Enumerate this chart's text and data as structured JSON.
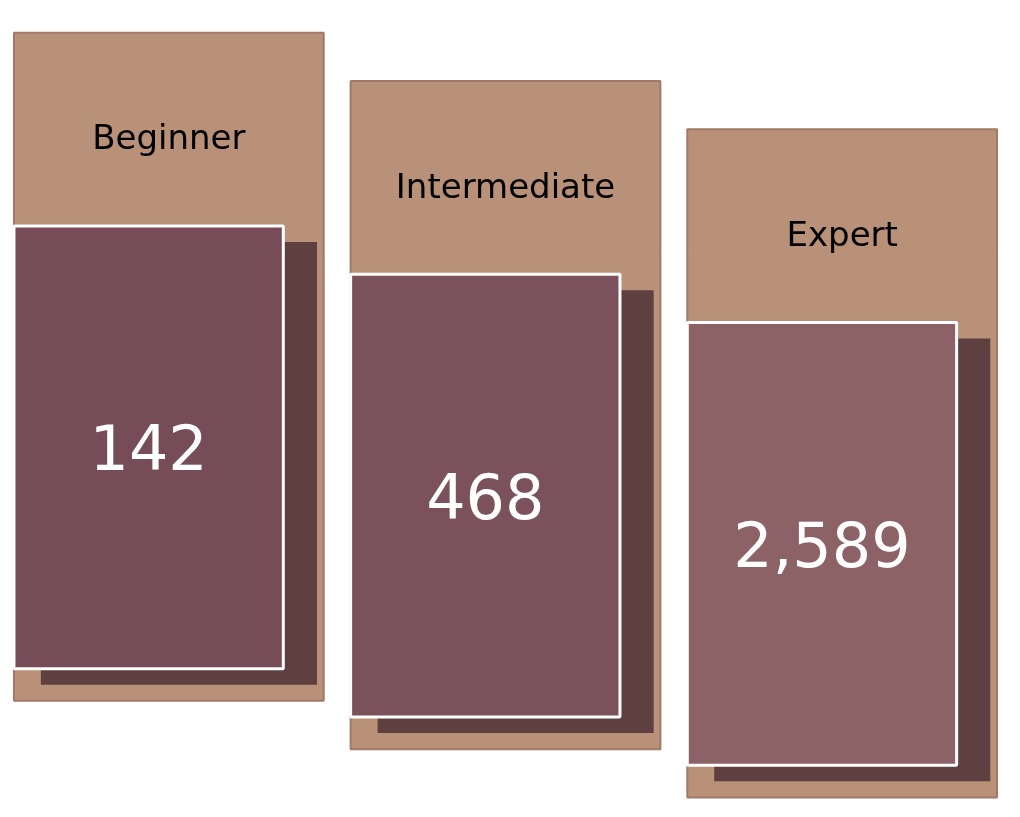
{
  "chart_data": {
    "type": "other",
    "categories": [
      "Beginner",
      "Intermediate",
      "Expert"
    ],
    "values": [
      142,
      468,
      2589
    ],
    "value_labels": [
      "142",
      "468",
      "2,589"
    ]
  }
}
